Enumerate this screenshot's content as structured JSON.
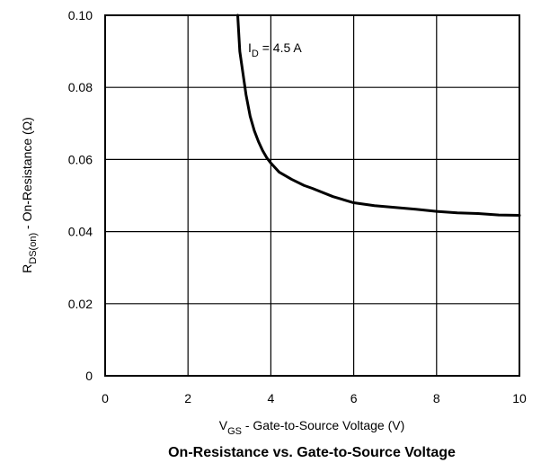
{
  "chart_data": {
    "type": "line",
    "title": "On-Resistance vs. Gate-to-Source Voltage",
    "xlabel": {
      "main": "V",
      "sub": "GS",
      "rest": " - Gate-to-Source Voltage (V)"
    },
    "ylabel": {
      "main": "R",
      "sub": "DS(on)",
      "rest": " - On-Resistance (Ω)"
    },
    "xlim": [
      0,
      10
    ],
    "ylim": [
      0,
      0.1
    ],
    "x_ticks": [
      "0",
      "2",
      "4",
      "6",
      "8",
      "10"
    ],
    "y_ticks": [
      "0",
      "0.02",
      "0.04",
      "0.06",
      "0.08",
      "0.10"
    ],
    "grid": true,
    "annotation": {
      "main": "I",
      "sub": "D",
      "rest": " = 4.5 A"
    },
    "series": [
      {
        "x": [
          3.2,
          3.25,
          3.3,
          3.4,
          3.5,
          3.6,
          3.7,
          3.8,
          3.9,
          4.0,
          4.2,
          4.5,
          4.8,
          5.0,
          5.5,
          6.0,
          6.5,
          7.0,
          7.5,
          8.0,
          8.5,
          9.0,
          9.5,
          10.0
        ],
        "y": [
          0.1,
          0.09,
          0.086,
          0.078,
          0.072,
          0.068,
          0.065,
          0.0625,
          0.0605,
          0.059,
          0.0565,
          0.0545,
          0.0528,
          0.052,
          0.0497,
          0.048,
          0.0472,
          0.0467,
          0.0462,
          0.0456,
          0.0452,
          0.045,
          0.0446,
          0.0445
        ]
      }
    ]
  }
}
